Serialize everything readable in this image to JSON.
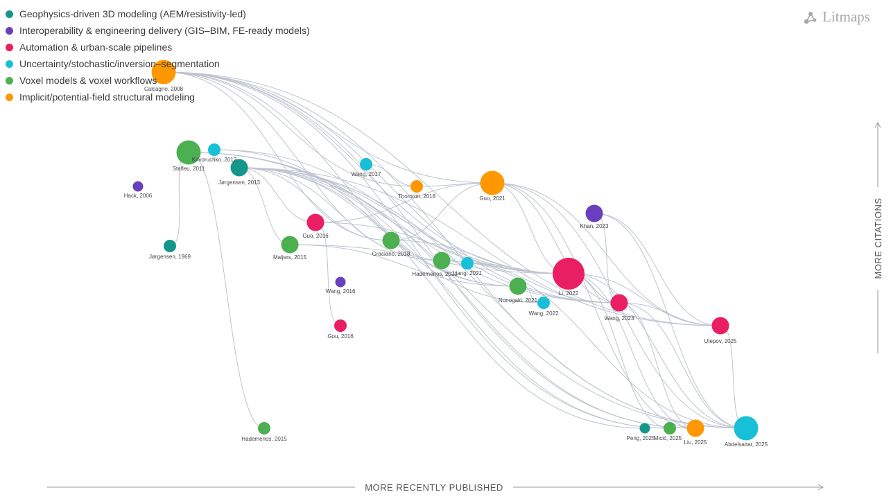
{
  "legend": [
    {
      "label": "Geophysics-driven 3D modeling (AEM/resistivity-led)",
      "color": "#14968a"
    },
    {
      "label": "Interoperability & engineering delivery (GIS–BIM, FE-ready models)",
      "color": "#6a3fbd"
    },
    {
      "label": "Automation & urban-scale pipelines",
      "color": "#e91e63"
    },
    {
      "label": "Uncertainty/stochastic/inversion–segmentation",
      "color": "#17c0d6"
    },
    {
      "label": "Voxel models & voxel workflows",
      "color": "#4caf50"
    },
    {
      "label": "Implicit/potential-field structural modeling",
      "color": "#ff9800"
    }
  ],
  "brand": {
    "name": "Litmaps"
  },
  "axes": {
    "x_label": "MORE RECENTLY PUBLISHED",
    "y_label": "MORE CITATIONS"
  },
  "papers": [
    {
      "id": "calcagno2008",
      "label": "Calcagno, 2008",
      "group": 5,
      "size": "large"
    },
    {
      "id": "stafleu2011",
      "label": "Stafleu, 2011",
      "group": 4,
      "size": "large"
    },
    {
      "id": "krivoruchko2012",
      "label": "Krivoruchko, 2012",
      "group": 3,
      "size": "small"
    },
    {
      "id": "jorgensen2013",
      "label": "Jørgensen, 2013",
      "group": 0,
      "size": "medium"
    },
    {
      "id": "hack2006",
      "label": "Hack, 2006",
      "group": 1,
      "size": "tiny"
    },
    {
      "id": "jorgensen1969",
      "label": "Jørgensen, 1969",
      "group": 0,
      "size": "small"
    },
    {
      "id": "guo2016",
      "label": "Guo, 2016",
      "group": 2,
      "size": "medium"
    },
    {
      "id": "maljers2015",
      "label": "Maljers, 2015",
      "group": 4,
      "size": "medium"
    },
    {
      "id": "wang2016",
      "label": "Wang, 2016",
      "group": 1,
      "size": "tiny"
    },
    {
      "id": "gou2016",
      "label": "Gou, 2016",
      "group": 2,
      "size": "small"
    },
    {
      "id": "hademenos2015",
      "label": "Hademenos, 2015",
      "group": 4,
      "size": "small"
    },
    {
      "id": "wang2017",
      "label": "Wang, 2017",
      "group": 3,
      "size": "small"
    },
    {
      "id": "thornton2018",
      "label": "Thornton, 2018",
      "group": 5,
      "size": "small"
    },
    {
      "id": "graciano2018",
      "label": "Graciano, 2018",
      "group": 4,
      "size": "medium"
    },
    {
      "id": "guo2021",
      "label": "Guo, 2021",
      "group": 5,
      "size": "large"
    },
    {
      "id": "hademenos2021",
      "label": "Hademenos, 2021",
      "group": 4,
      "size": "medium"
    },
    {
      "id": "liang2021",
      "label": "Liang, 2021",
      "group": 3,
      "size": "small"
    },
    {
      "id": "nonogaki2021",
      "label": "Nonogaki, 2021",
      "group": 4,
      "size": "medium"
    },
    {
      "id": "wang2022",
      "label": "Wang, 2022",
      "group": 3,
      "size": "small"
    },
    {
      "id": "li2022",
      "label": "Li, 2022",
      "group": 2,
      "size": "huge"
    },
    {
      "id": "khan2023",
      "label": "Khan, 2023",
      "group": 1,
      "size": "medium"
    },
    {
      "id": "wang2023",
      "label": "Wang, 2023",
      "group": 2,
      "size": "medium"
    },
    {
      "id": "utepov2025",
      "label": "Utepov, 2025",
      "group": 2,
      "size": "medium"
    },
    {
      "id": "peng2025",
      "label": "Peng, 2025",
      "group": 0,
      "size": "tiny"
    },
    {
      "id": "micic2025",
      "label": "Micić, 2025",
      "group": 4,
      "size": "small"
    },
    {
      "id": "liu2025",
      "label": "Liu, 2025",
      "group": 5,
      "size": "medium"
    },
    {
      "id": "abdelsattar2025",
      "label": "Abdelsattar, 2025",
      "group": 3,
      "size": "large"
    }
  ],
  "links": [
    [
      "calcagno2008",
      "guo2021"
    ],
    [
      "calcagno2008",
      "graciano2018"
    ],
    [
      "calcagno2008",
      "li2022"
    ],
    [
      "calcagno2008",
      "wang2023"
    ],
    [
      "calcagno2008",
      "liu2025"
    ],
    [
      "calcagno2008",
      "micic2025"
    ],
    [
      "calcagno2008",
      "abdelsattar2025"
    ],
    [
      "calcagno2008",
      "utepov2025"
    ],
    [
      "calcagno2008",
      "thornton2018"
    ],
    [
      "calcagno2008",
      "hademenos2021"
    ],
    [
      "calcagno2008",
      "nonogaki2021"
    ],
    [
      "stafleu2011",
      "jorgensen1969"
    ],
    [
      "stafleu2011",
      "hademenos2015"
    ],
    [
      "stafleu2011",
      "li2022"
    ],
    [
      "stafleu2011",
      "wang2023"
    ],
    [
      "stafleu2011",
      "abdelsattar2025"
    ],
    [
      "krivoruchko2012",
      "wang2022"
    ],
    [
      "krivoruchko2012",
      "li2022"
    ],
    [
      "jorgensen2013",
      "maljers2015"
    ],
    [
      "jorgensen2013",
      "guo2016"
    ],
    [
      "jorgensen2013",
      "graciano2018"
    ],
    [
      "jorgensen2013",
      "hademenos2021"
    ],
    [
      "jorgensen2013",
      "li2022"
    ],
    [
      "jorgensen2013",
      "nonogaki2021"
    ],
    [
      "jorgensen2013",
      "wang2023"
    ],
    [
      "jorgensen2013",
      "utepov2025"
    ],
    [
      "jorgensen2013",
      "abdelsattar2025"
    ],
    [
      "jorgensen2013",
      "liu2025"
    ],
    [
      "jorgensen2013",
      "micic2025"
    ],
    [
      "jorgensen2013",
      "peng2025"
    ],
    [
      "wang2017",
      "thornton2018"
    ],
    [
      "thornton2018",
      "guo2021"
    ],
    [
      "guo2016",
      "guo2021"
    ],
    [
      "guo2016",
      "gou2016"
    ],
    [
      "guo2016",
      "li2022"
    ],
    [
      "graciano2018",
      "guo2021"
    ],
    [
      "graciano2018",
      "li2022"
    ],
    [
      "maljers2015",
      "li2022"
    ],
    [
      "maljers2015",
      "nonogaki2021"
    ],
    [
      "hademenos2021",
      "liang2021"
    ],
    [
      "hademenos2021",
      "wang2023"
    ],
    [
      "hademenos2021",
      "abdelsattar2025"
    ],
    [
      "liang2021",
      "li2022"
    ],
    [
      "nonogaki2021",
      "wang2022"
    ],
    [
      "guo2021",
      "li2022"
    ],
    [
      "guo2021",
      "wang2023"
    ],
    [
      "guo2021",
      "liu2025"
    ],
    [
      "guo2021",
      "utepov2025"
    ],
    [
      "guo2021",
      "abdelsattar2025"
    ],
    [
      "li2022",
      "wang2023"
    ],
    [
      "li2022",
      "utepov2025"
    ],
    [
      "li2022",
      "abdelsattar2025"
    ],
    [
      "li2022",
      "liu2025"
    ],
    [
      "li2022",
      "micic2025"
    ],
    [
      "khan2023",
      "utepov2025"
    ],
    [
      "khan2023",
      "abdelsattar2025"
    ],
    [
      "khan2023",
      "wang2023"
    ],
    [
      "wang2023",
      "abdelsattar2025"
    ],
    [
      "wang2023",
      "liu2025"
    ],
    [
      "wang2023",
      "utepov2025"
    ],
    [
      "utepov2025",
      "abdelsattar2025"
    ]
  ]
}
